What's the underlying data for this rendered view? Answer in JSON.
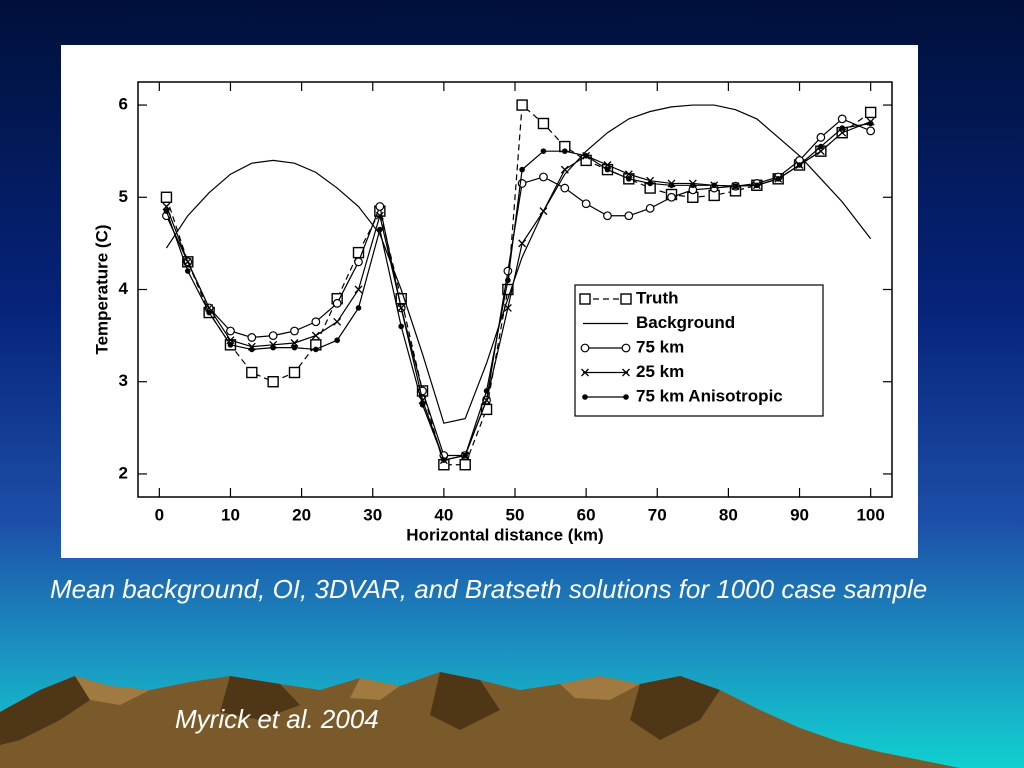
{
  "chart_data": {
    "type": "line",
    "xlabel": "Horizontal distance (km)",
    "ylabel": "Temperature (C)",
    "x": [
      1,
      4,
      7,
      10,
      13,
      16,
      19,
      22,
      25,
      28,
      31,
      34,
      37,
      40,
      43,
      46,
      49,
      51,
      54,
      57,
      60,
      63,
      66,
      69,
      72,
      75,
      78,
      81,
      84,
      87,
      90,
      93,
      96,
      100
    ],
    "xlim": [
      -3,
      103
    ],
    "ylim": [
      1.75,
      6.25
    ],
    "xticks": [
      0,
      10,
      20,
      30,
      40,
      50,
      60,
      70,
      80,
      90,
      100
    ],
    "yticks": [
      2,
      3,
      4,
      5,
      6
    ],
    "legend": "right",
    "series": [
      {
        "name": "Truth",
        "color": "#000000",
        "marker": "square",
        "dashed": true,
        "values": [
          5.0,
          4.3,
          3.75,
          3.4,
          3.1,
          3.0,
          3.1,
          3.4,
          3.9,
          4.4,
          4.85,
          3.9,
          2.9,
          2.1,
          2.1,
          2.7,
          4.0,
          6.0,
          5.8,
          5.55,
          5.4,
          5.3,
          5.2,
          5.1,
          5.03,
          5.0,
          5.02,
          5.07,
          5.13,
          5.2,
          5.35,
          5.5,
          5.7,
          5.92
        ]
      },
      {
        "name": "Background",
        "color": "#000000",
        "marker": "none",
        "dashed": false,
        "values": [
          4.45,
          4.8,
          5.05,
          5.25,
          5.37,
          5.4,
          5.37,
          5.27,
          5.1,
          4.9,
          4.6,
          4.0,
          3.3,
          2.55,
          2.6,
          3.2,
          3.9,
          4.35,
          4.85,
          5.25,
          5.5,
          5.7,
          5.85,
          5.93,
          5.98,
          6.0,
          6.0,
          5.95,
          5.85,
          5.65,
          5.45,
          5.2,
          4.95,
          4.55
        ]
      },
      {
        "name": "75 km",
        "color": "#000000",
        "marker": "circle",
        "dashed": false,
        "values": [
          4.8,
          4.3,
          3.8,
          3.55,
          3.48,
          3.5,
          3.55,
          3.65,
          3.85,
          4.3,
          4.9,
          3.8,
          2.9,
          2.2,
          2.2,
          2.8,
          4.2,
          5.15,
          5.22,
          5.1,
          4.93,
          4.8,
          4.8,
          4.88,
          5.0,
          5.08,
          5.1,
          5.12,
          5.15,
          5.22,
          5.4,
          5.65,
          5.85,
          5.72
        ]
      },
      {
        "name": "25 km",
        "color": "#000000",
        "marker": "cross",
        "dashed": false,
        "values": [
          4.9,
          4.3,
          3.8,
          3.45,
          3.38,
          3.4,
          3.42,
          3.5,
          3.65,
          4.0,
          4.8,
          3.8,
          2.8,
          2.15,
          2.2,
          2.8,
          3.8,
          4.5,
          4.85,
          5.3,
          5.45,
          5.35,
          5.25,
          5.18,
          5.15,
          5.15,
          5.13,
          5.12,
          5.13,
          5.2,
          5.35,
          5.5,
          5.7,
          5.82
        ]
      },
      {
        "name": "75 km Anisotropic",
        "color": "#000000",
        "marker": "dot",
        "dashed": false,
        "values": [
          4.85,
          4.2,
          3.75,
          3.4,
          3.35,
          3.37,
          3.37,
          3.35,
          3.45,
          3.8,
          4.65,
          3.6,
          2.75,
          2.15,
          2.2,
          2.9,
          4.1,
          5.3,
          5.5,
          5.5,
          5.45,
          5.3,
          5.2,
          5.15,
          5.13,
          5.13,
          5.13,
          5.12,
          5.13,
          5.2,
          5.35,
          5.55,
          5.75,
          5.8
        ]
      }
    ]
  },
  "caption": "Mean background, OI, 3DVAR, and Bratseth solutions for 1000 case sample",
  "citation": "Myrick et al. 2004"
}
